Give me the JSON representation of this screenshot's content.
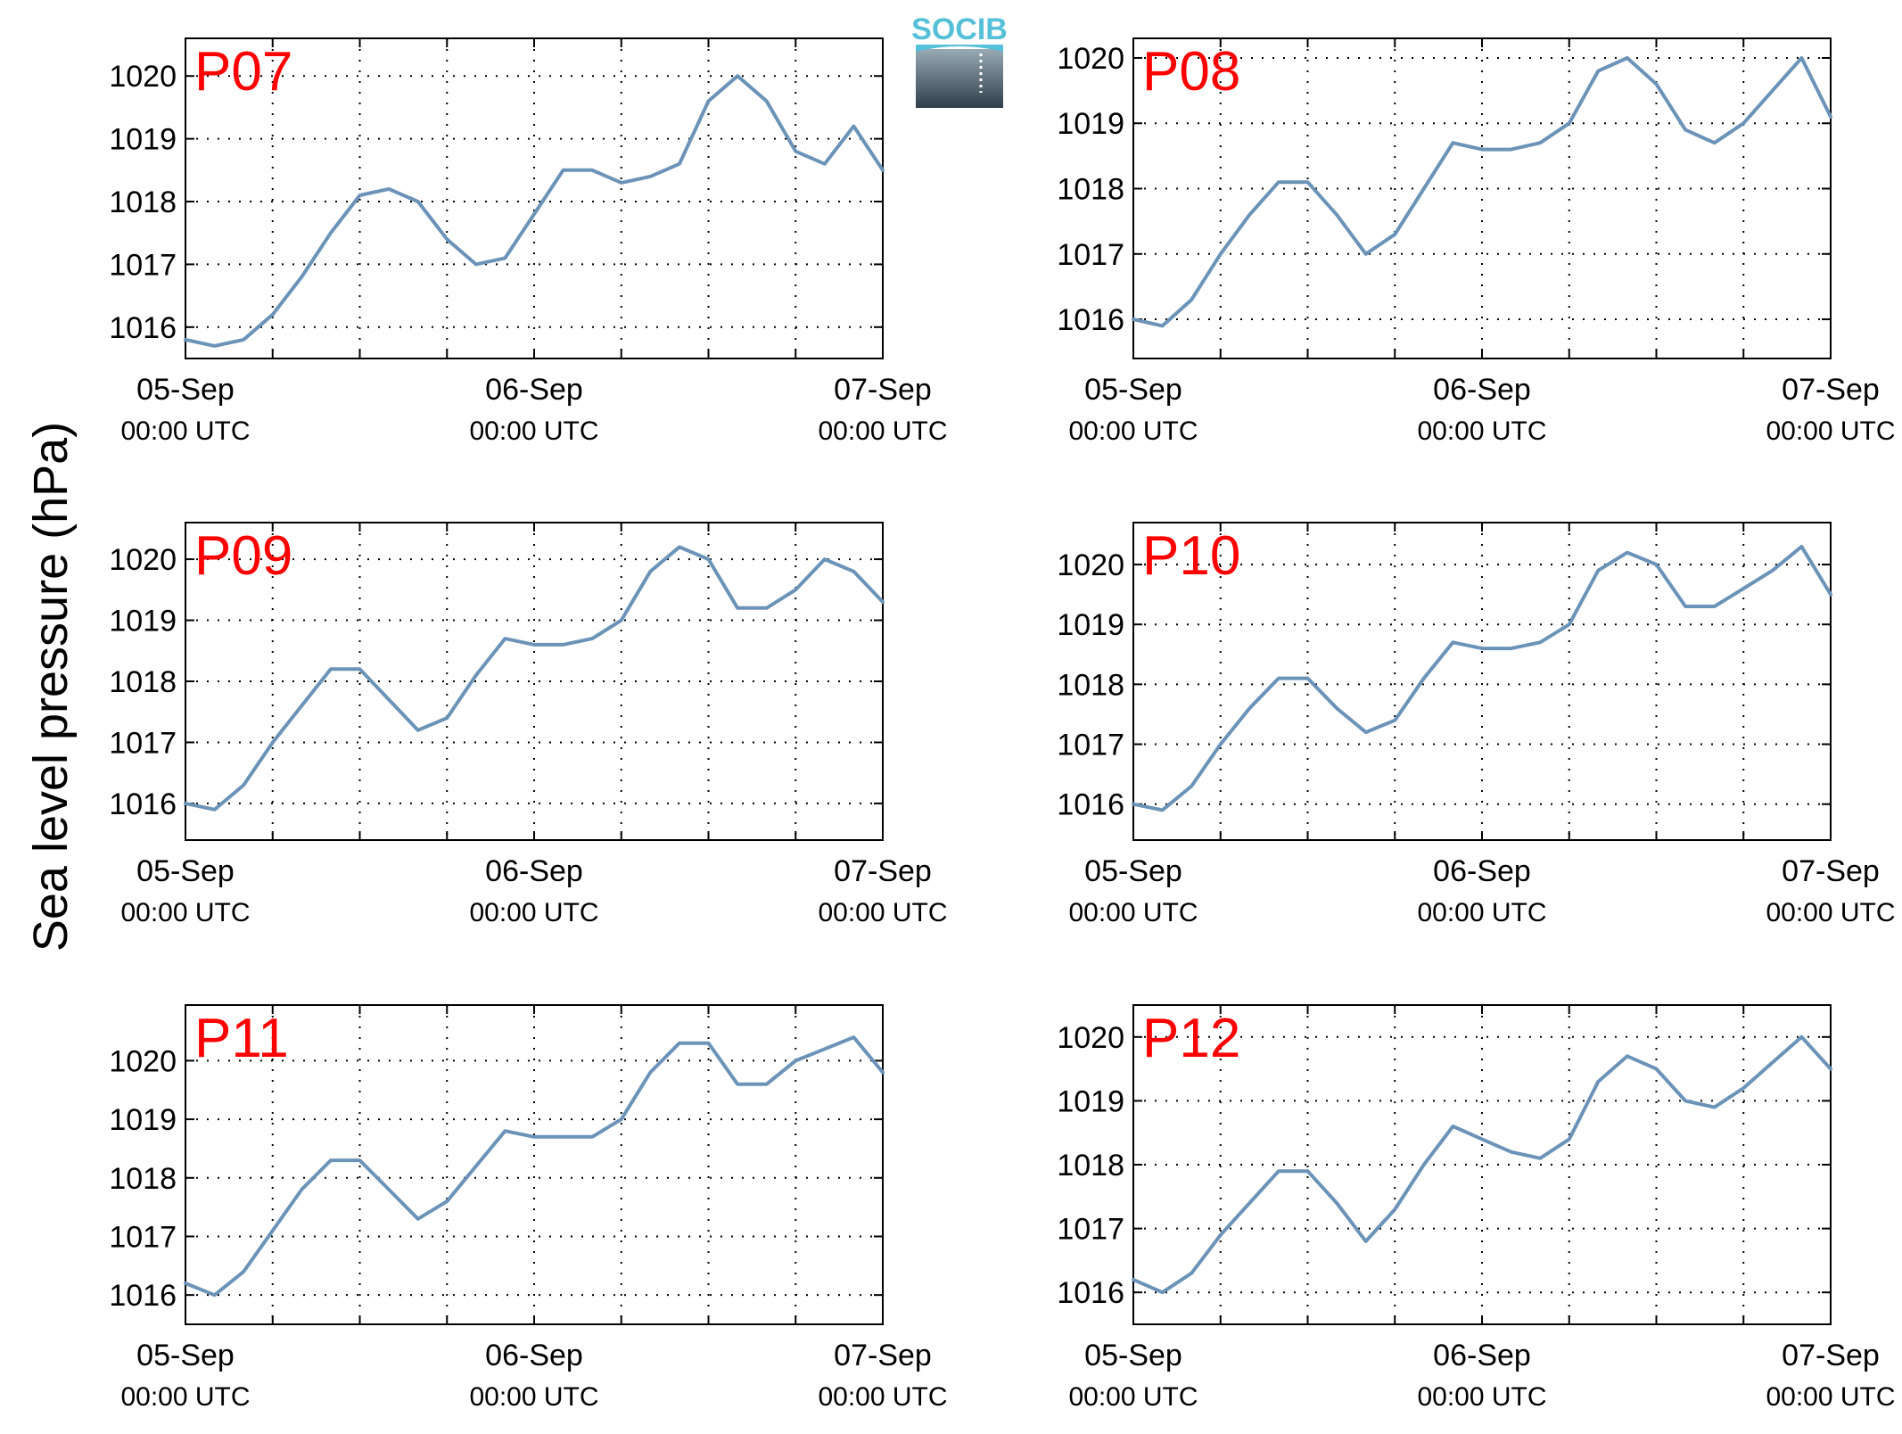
{
  "figure": {
    "ylabel": "Sea level pressure (hPa)",
    "logo_text": "SOCIB"
  },
  "colors": {
    "line": "#6b93b8",
    "panel_label": "#ff0000",
    "grid": "#000000",
    "logo_top": "#55c0d8",
    "logo_dark": "#2e3e4a"
  },
  "chart_data": [
    {
      "type": "line",
      "panel": "P07",
      "x_ticks": [
        "05-Sep 00:00 UTC",
        "06-Sep 00:00 UTC",
        "07-Sep 00:00 UTC"
      ],
      "x": [
        0,
        2,
        4,
        6,
        8,
        10,
        12,
        14,
        16,
        18,
        20,
        22,
        24,
        26,
        28,
        30,
        32,
        34,
        36,
        38,
        40,
        42,
        44,
        46,
        48
      ],
      "series": [
        {
          "values": [
            1015.8,
            1015.7,
            1015.8,
            1016.2,
            1016.8,
            1017.5,
            1018.1,
            1018.2,
            1018.0,
            1017.4,
            1017.0,
            1017.1,
            1017.8,
            1018.5,
            1018.5,
            1018.3,
            1018.4,
            1018.6,
            1019.6,
            1020.0,
            1019.6,
            1018.8,
            1018.6,
            1019.2,
            1018.5
          ]
        }
      ],
      "yticks": [
        1016,
        1017,
        1018,
        1019,
        1020
      ],
      "ylim": [
        1015.5,
        1020.6
      ],
      "grid": true
    },
    {
      "type": "line",
      "panel": "P08",
      "x_ticks": [
        "05-Sep 00:00 UTC",
        "06-Sep 00:00 UTC",
        "07-Sep 00:00 UTC"
      ],
      "x": [
        0,
        2,
        4,
        6,
        8,
        10,
        12,
        14,
        16,
        18,
        20,
        22,
        24,
        26,
        28,
        30,
        32,
        34,
        36,
        38,
        40,
        42,
        44,
        46,
        48
      ],
      "series": [
        {
          "values": [
            1016.0,
            1015.9,
            1016.3,
            1017.0,
            1017.6,
            1018.1,
            1018.1,
            1017.6,
            1017.0,
            1017.3,
            1018.0,
            1018.7,
            1018.6,
            1018.6,
            1018.7,
            1019.0,
            1019.8,
            1020.0,
            1019.6,
            1018.9,
            1018.7,
            1019.0,
            1019.5,
            1020.0,
            1019.1
          ]
        }
      ],
      "yticks": [
        1016,
        1017,
        1018,
        1019,
        1020
      ],
      "ylim": [
        1015.4,
        1020.3
      ],
      "grid": true
    },
    {
      "type": "line",
      "panel": "P09",
      "x_ticks": [
        "05-Sep 00:00 UTC",
        "06-Sep 00:00 UTC",
        "07-Sep 00:00 UTC"
      ],
      "x": [
        0,
        2,
        4,
        6,
        8,
        10,
        12,
        14,
        16,
        18,
        20,
        22,
        24,
        26,
        28,
        30,
        32,
        34,
        36,
        38,
        40,
        42,
        44,
        46,
        48
      ],
      "series": [
        {
          "values": [
            1016.0,
            1015.9,
            1016.3,
            1017.0,
            1017.6,
            1018.2,
            1018.2,
            1017.7,
            1017.2,
            1017.4,
            1018.1,
            1018.7,
            1018.6,
            1018.6,
            1018.7,
            1019.0,
            1019.8,
            1020.2,
            1020.0,
            1019.2,
            1019.2,
            1019.5,
            1020.0,
            1019.8,
            1019.3
          ]
        }
      ],
      "yticks": [
        1016,
        1017,
        1018,
        1019,
        1020
      ],
      "ylim": [
        1015.4,
        1020.6
      ],
      "grid": true
    },
    {
      "type": "line",
      "panel": "P10",
      "x_ticks": [
        "05-Sep 00:00 UTC",
        "06-Sep 00:00 UTC",
        "07-Sep 00:00 UTC"
      ],
      "x": [
        0,
        2,
        4,
        6,
        8,
        10,
        12,
        14,
        16,
        18,
        20,
        22,
        24,
        26,
        28,
        30,
        32,
        34,
        36,
        38,
        40,
        42,
        44,
        46,
        48
      ],
      "series": [
        {
          "values": [
            1016.0,
            1015.9,
            1016.3,
            1017.0,
            1017.6,
            1018.1,
            1018.1,
            1017.6,
            1017.2,
            1017.4,
            1018.1,
            1018.7,
            1018.6,
            1018.6,
            1018.7,
            1019.0,
            1019.9,
            1020.2,
            1020.0,
            1019.3,
            1019.3,
            1019.6,
            1019.9,
            1020.3,
            1019.5
          ]
        }
      ],
      "yticks": [
        1016,
        1017,
        1018,
        1019,
        1020
      ],
      "ylim": [
        1015.4,
        1020.7
      ],
      "grid": true
    },
    {
      "type": "line",
      "panel": "P11",
      "x_ticks": [
        "05-Sep 00:00 UTC",
        "06-Sep 00:00 UTC",
        "07-Sep 00:00 UTC"
      ],
      "x": [
        0,
        2,
        4,
        6,
        8,
        10,
        12,
        14,
        16,
        18,
        20,
        22,
        24,
        26,
        28,
        30,
        32,
        34,
        36,
        38,
        40,
        42,
        44,
        46,
        48
      ],
      "series": [
        {
          "values": [
            1016.2,
            1016.0,
            1016.4,
            1017.1,
            1017.8,
            1018.3,
            1018.3,
            1017.8,
            1017.3,
            1017.6,
            1018.2,
            1018.8,
            1018.7,
            1018.7,
            1018.7,
            1019.0,
            1019.8,
            1020.3,
            1020.3,
            1019.6,
            1019.6,
            1020.0,
            1020.2,
            1020.4,
            1019.8
          ]
        }
      ],
      "yticks": [
        1016,
        1017,
        1018,
        1019,
        1020
      ],
      "ylim": [
        1015.5,
        1020.95
      ],
      "grid": true
    },
    {
      "type": "line",
      "panel": "P12",
      "x_ticks": [
        "05-Sep 00:00 UTC",
        "06-Sep 00:00 UTC",
        "07-Sep 00:00 UTC"
      ],
      "x": [
        0,
        2,
        4,
        6,
        8,
        10,
        12,
        14,
        16,
        18,
        20,
        22,
        24,
        26,
        28,
        30,
        32,
        34,
        36,
        38,
        40,
        42,
        44,
        46,
        48
      ],
      "series": [
        {
          "values": [
            1016.2,
            1016.0,
            1016.3,
            1016.9,
            1017.4,
            1017.9,
            1017.9,
            1017.4,
            1016.8,
            1017.3,
            1018.0,
            1018.6,
            1018.4,
            1018.2,
            1018.1,
            1018.4,
            1019.3,
            1019.7,
            1019.5,
            1019.0,
            1018.9,
            1019.2,
            1019.6,
            1020.0,
            1019.5
          ]
        }
      ],
      "yticks": [
        1016,
        1017,
        1018,
        1019,
        1020
      ],
      "ylim": [
        1015.5,
        1020.5
      ],
      "grid": true
    }
  ]
}
